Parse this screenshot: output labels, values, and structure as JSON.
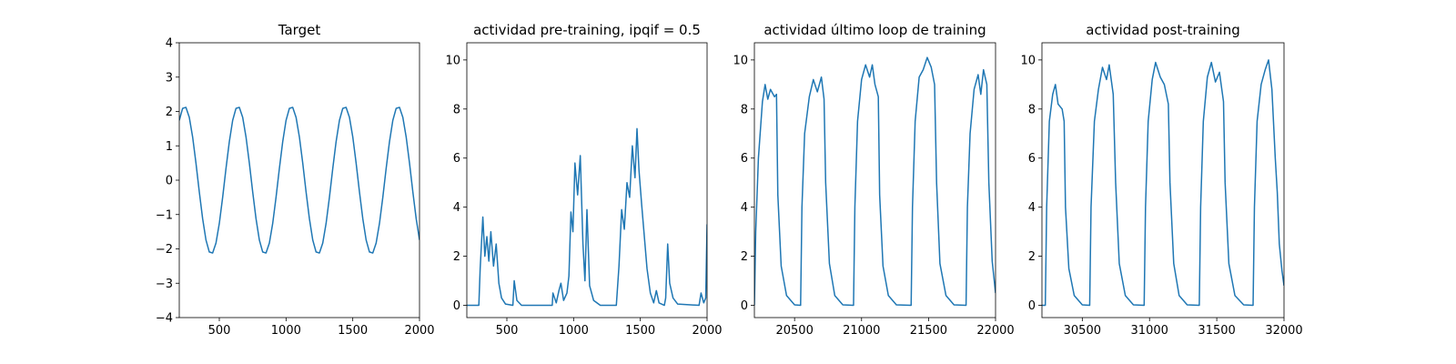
{
  "chart_data": [
    {
      "type": "line",
      "title": "Target",
      "color": "#1f77b4",
      "x": [
        200,
        225,
        250,
        275,
        300,
        325,
        350,
        375,
        400,
        425,
        450,
        475,
        500,
        525,
        550,
        575,
        600,
        625,
        650,
        675,
        700,
        725,
        750,
        775,
        800,
        825,
        850,
        875,
        900,
        925,
        950,
        975,
        1000,
        1025,
        1050,
        1075,
        1100,
        1125,
        1150,
        1175,
        1200,
        1225,
        1250,
        1275,
        1300,
        1325,
        1350,
        1375,
        1400,
        1425,
        1450,
        1475,
        1500,
        1525,
        1550,
        1575,
        1600,
        1625,
        1650,
        1675,
        1700,
        1725,
        1750,
        1775,
        1800,
        1825,
        1850,
        1875,
        1900,
        1925,
        1950,
        1975,
        2000
      ],
      "values": [
        1.74,
        2.09,
        2.12,
        1.83,
        1.26,
        0.5,
        -0.34,
        -1.12,
        -1.74,
        -2.09,
        -2.12,
        -1.83,
        -1.26,
        -0.5,
        0.34,
        1.12,
        1.74,
        2.09,
        2.12,
        1.83,
        1.26,
        0.5,
        -0.34,
        -1.12,
        -1.74,
        -2.09,
        -2.12,
        -1.83,
        -1.26,
        -0.5,
        0.34,
        1.12,
        1.74,
        2.09,
        2.12,
        1.83,
        1.26,
        0.5,
        -0.34,
        -1.12,
        -1.74,
        -2.09,
        -2.12,
        -1.83,
        -1.26,
        -0.5,
        0.34,
        1.12,
        1.74,
        2.09,
        2.12,
        1.83,
        1.26,
        0.5,
        -0.34,
        -1.12,
        -1.74,
        -2.09,
        -2.12,
        -1.83,
        -1.26,
        -0.5,
        0.34,
        1.12,
        1.74,
        2.09,
        2.12,
        1.83,
        1.26,
        0.5,
        -0.34,
        -1.12,
        -1.74
      ],
      "xlim": [
        200,
        2000
      ],
      "xticks": [
        500,
        1000,
        1500,
        2000
      ],
      "ylim": [
        -4,
        4
      ],
      "yticks": [
        {
          "value": -4,
          "label": "−4"
        },
        {
          "value": -3,
          "label": "−3"
        },
        {
          "value": -2,
          "label": "−2"
        },
        {
          "value": -1,
          "label": "−1"
        },
        0,
        1,
        2,
        3,
        4
      ]
    },
    {
      "type": "line",
      "title": "actividad pre-training, ipqif = 0.5",
      "color": "#1f77b4",
      "x": [
        200,
        290,
        300,
        320,
        335,
        350,
        365,
        380,
        400,
        420,
        440,
        460,
        490,
        545,
        555,
        575,
        610,
        840,
        845,
        870,
        890,
        905,
        925,
        950,
        965,
        980,
        995,
        1010,
        1030,
        1050,
        1070,
        1085,
        1100,
        1120,
        1150,
        1200,
        1320,
        1340,
        1360,
        1380,
        1400,
        1420,
        1440,
        1460,
        1475,
        1490,
        1510,
        1530,
        1550,
        1575,
        1600,
        1620,
        1640,
        1680,
        1690,
        1705,
        1720,
        1745,
        1780,
        1940,
        1955,
        1975,
        1990,
        2000
      ],
      "values": [
        0,
        0,
        1.5,
        3.6,
        2.0,
        2.8,
        1.8,
        3.0,
        1.6,
        2.5,
        0.9,
        0.3,
        0.05,
        0,
        1.0,
        0.2,
        0,
        0,
        0.5,
        0.1,
        0.6,
        0.9,
        0.2,
        0.5,
        1.2,
        3.8,
        3.0,
        5.8,
        4.5,
        6.1,
        2.5,
        1.0,
        3.9,
        0.8,
        0.2,
        0,
        0,
        1.6,
        3.9,
        3.1,
        5.0,
        4.4,
        6.5,
        5.2,
        7.2,
        5.5,
        4.1,
        2.8,
        1.5,
        0.5,
        0.1,
        0.6,
        0.1,
        0,
        0.3,
        2.5,
        0.9,
        0.3,
        0.05,
        0,
        0.5,
        0.1,
        0.3,
        3.3
      ],
      "xlim": [
        200,
        2000
      ],
      "xticks": [
        500,
        1000,
        1500,
        2000
      ],
      "ylim": [
        -0.5,
        10.7
      ],
      "yticks": [
        0,
        2,
        4,
        6,
        8,
        10
      ]
    },
    {
      "type": "line",
      "title": "actividad último loop de training",
      "color": "#1f77b4",
      "x": [
        20200,
        20210,
        20230,
        20260,
        20280,
        20300,
        20320,
        20350,
        20365,
        20375,
        20400,
        20440,
        20500,
        20545,
        20555,
        20575,
        20610,
        20640,
        20670,
        20700,
        20720,
        20732,
        20760,
        20800,
        20860,
        20940,
        20950,
        20970,
        21000,
        21030,
        21060,
        21080,
        21100,
        21125,
        21135,
        21160,
        21200,
        21260,
        21370,
        21380,
        21400,
        21430,
        21460,
        21490,
        21520,
        21545,
        21560,
        21585,
        21630,
        21690,
        21780,
        21790,
        21810,
        21840,
        21870,
        21890,
        21910,
        21935,
        21950,
        21975,
        22000
      ],
      "values": [
        0,
        3,
        6,
        8.3,
        9.0,
        8.4,
        8.8,
        8.5,
        8.6,
        4.5,
        1.6,
        0.4,
        0.02,
        0,
        4,
        7,
        8.5,
        9.2,
        8.7,
        9.3,
        8.4,
        5,
        1.7,
        0.4,
        0.02,
        0,
        4,
        7.5,
        9.2,
        9.8,
        9.3,
        9.8,
        9.0,
        8.5,
        4.5,
        1.6,
        0.4,
        0.02,
        0,
        4,
        7.5,
        9.3,
        9.6,
        10.1,
        9.7,
        9.0,
        5,
        1.7,
        0.4,
        0.02,
        0,
        4,
        7,
        8.8,
        9.4,
        8.6,
        9.6,
        9.0,
        5,
        1.8,
        0.5
      ],
      "xlim": [
        20200,
        22000
      ],
      "xticks": [
        20500,
        21000,
        21500,
        22000
      ],
      "ylim": [
        -0.5,
        10.7
      ],
      "yticks": [
        0,
        2,
        4,
        6,
        8,
        10
      ]
    },
    {
      "type": "line",
      "title": "actividad post-training",
      "color": "#1f77b4",
      "x": [
        30200,
        30225,
        30235,
        30255,
        30280,
        30300,
        30320,
        30350,
        30365,
        30375,
        30400,
        30440,
        30500,
        30555,
        30565,
        30590,
        30620,
        30650,
        30680,
        30700,
        30730,
        30748,
        30775,
        30820,
        30880,
        30960,
        30970,
        30990,
        31020,
        31045,
        31080,
        31110,
        31140,
        31152,
        31180,
        31220,
        31280,
        31370,
        31380,
        31400,
        31430,
        31460,
        31490,
        31520,
        31550,
        31562,
        31590,
        31635,
        31700,
        31770,
        31780,
        31800,
        31830,
        31860,
        31885,
        31910,
        31935,
        31950,
        31965,
        31985,
        32000
      ],
      "values": [
        0,
        0,
        4,
        7.5,
        8.6,
        9.0,
        8.2,
        8.0,
        7.5,
        4,
        1.5,
        0.4,
        0.02,
        0,
        4,
        7.5,
        8.8,
        9.7,
        9.2,
        9.8,
        8.6,
        5,
        1.7,
        0.4,
        0.02,
        0,
        4,
        7.5,
        9.2,
        9.9,
        9.3,
        9.0,
        8.2,
        5,
        1.7,
        0.4,
        0.02,
        0,
        4,
        7.5,
        9.3,
        9.9,
        9.1,
        9.5,
        8.3,
        5,
        1.7,
        0.4,
        0.02,
        0,
        4,
        7.5,
        9.0,
        9.6,
        10.0,
        8.8,
        6.0,
        4.6,
        2.5,
        1.4,
        0.8
      ],
      "xlim": [
        30200,
        32000
      ],
      "xticks": [
        30500,
        31000,
        31500,
        32000
      ],
      "ylim": [
        -0.5,
        10.7
      ],
      "yticks": [
        0,
        2,
        4,
        6,
        8,
        10
      ]
    }
  ]
}
